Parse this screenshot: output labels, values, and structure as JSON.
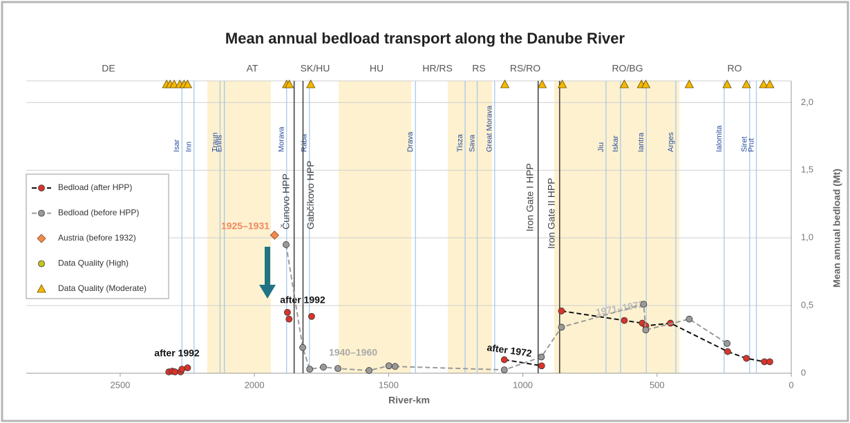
{
  "chart_data": {
    "type": "scatter",
    "title": "Mean annual bedload transport along the Danube River",
    "xlabel": "River-km",
    "ylabel": "Mean annual bedload (Mt)",
    "xlim": [
      2850,
      0
    ],
    "xticks": [
      2500,
      2000,
      1500,
      1000,
      500,
      0
    ],
    "ylim": [
      0,
      2.16
    ],
    "yticks": [
      0,
      {
        "value": 0.5,
        "label": "0,5"
      },
      {
        "value": 1,
        "label": "1,0"
      },
      {
        "value": 1.5,
        "label": "1,5"
      },
      {
        "value": 2,
        "label": "2,0"
      }
    ],
    "grid": true,
    "legend": "left",
    "regions": [
      "DE",
      "AT",
      "SK/HU",
      "HU",
      "HR/RS",
      "RS",
      "RS/RO",
      "RO/BG",
      "RO"
    ],
    "tributaries": [
      {
        "name": "Isar",
        "km": 2270
      },
      {
        "name": "Inn",
        "km": 2225
      },
      {
        "name": "Traun",
        "km": 2128
      },
      {
        "name": "Enns",
        "km": 2112
      },
      {
        "name": "Morava",
        "km": 1880
      },
      {
        "name": "Rába",
        "km": 1795
      },
      {
        "name": "Drava",
        "km": 1400
      },
      {
        "name": "Tisza",
        "km": 1215
      },
      {
        "name": "Sava",
        "km": 1170
      },
      {
        "name": "Great Morava",
        "km": 1105
      },
      {
        "name": "Jiu",
        "km": 690
      },
      {
        "name": "Iskar",
        "km": 636
      },
      {
        "name": "Iantra",
        "km": 540
      },
      {
        "name": "Arges",
        "km": 430
      },
      {
        "name": "Ialomita",
        "km": 250
      },
      {
        "name": "Siret",
        "km": 155
      },
      {
        "name": "Prut",
        "km": 130
      }
    ],
    "hpp": [
      {
        "name": "Čunovo HPP",
        "km": 1852
      },
      {
        "name": "Gabčíkovo HPP",
        "km": 1819
      },
      {
        "name": "Iron Gate I HPP",
        "km": 943
      },
      {
        "name": "Iron Gate II HPP",
        "km": 863
      }
    ],
    "series": [
      {
        "name": "Bedload (after HPP)",
        "color": "#d9342b",
        "line_color": "#111111",
        "marker": "circle",
        "x": [
          2319,
          2306,
          2296,
          2275,
          2270,
          2249,
          null,
          1877,
          null,
          1871,
          null,
          1787,
          null,
          1069,
          930,
          null,
          856,
          622,
          555,
          542,
          450,
          237,
          167,
          100,
          80
        ],
        "values": [
          0.01,
          0.015,
          0.01,
          0.01,
          0.03,
          0.04,
          null,
          0.45,
          null,
          0.4,
          null,
          0.42,
          null,
          0.1,
          0.055,
          null,
          0.46,
          0.39,
          0.37,
          0.35,
          0.37,
          0.16,
          0.11,
          0.085,
          0.085
        ]
      },
      {
        "name": "Bedload (before HPP)",
        "color": "#9a9a9a",
        "line_color": "#9a9a9a",
        "marker": "circle",
        "x": [
          1882,
          1820,
          1794,
          1743,
          1689,
          1573,
          1499,
          1476,
          1069,
          931,
          856,
          550,
          542,
          380,
          239
        ],
        "values": [
          0.95,
          0.19,
          0.03,
          0.045,
          0.035,
          0.02,
          0.055,
          0.05,
          0.025,
          0.12,
          0.34,
          0.51,
          0.32,
          0.4,
          0.22
        ]
      },
      {
        "name": "Austria (before 1932)",
        "color": "#f08a4b",
        "marker": "diamond",
        "x": [
          1925
        ],
        "values": [
          1.02
        ]
      },
      {
        "name": "Data Quality (High)",
        "color": "#c9c41f",
        "marker": "circle",
        "x": [],
        "values": []
      },
      {
        "name": "Data Quality (Moderate)",
        "color": "#f5b800",
        "marker": "triangle",
        "x": [
          2327,
          2314,
          2299,
          2278,
          2262,
          2249,
          1880,
          1870,
          1790,
          1067,
          928,
          853,
          622,
          558,
          542,
          380,
          239,
          167,
          103,
          80
        ]
      }
    ],
    "annotations": [
      "after 1992",
      "after 1992",
      "1940–1960",
      "after 1972",
      "1971–1972",
      "1925–1931"
    ]
  }
}
